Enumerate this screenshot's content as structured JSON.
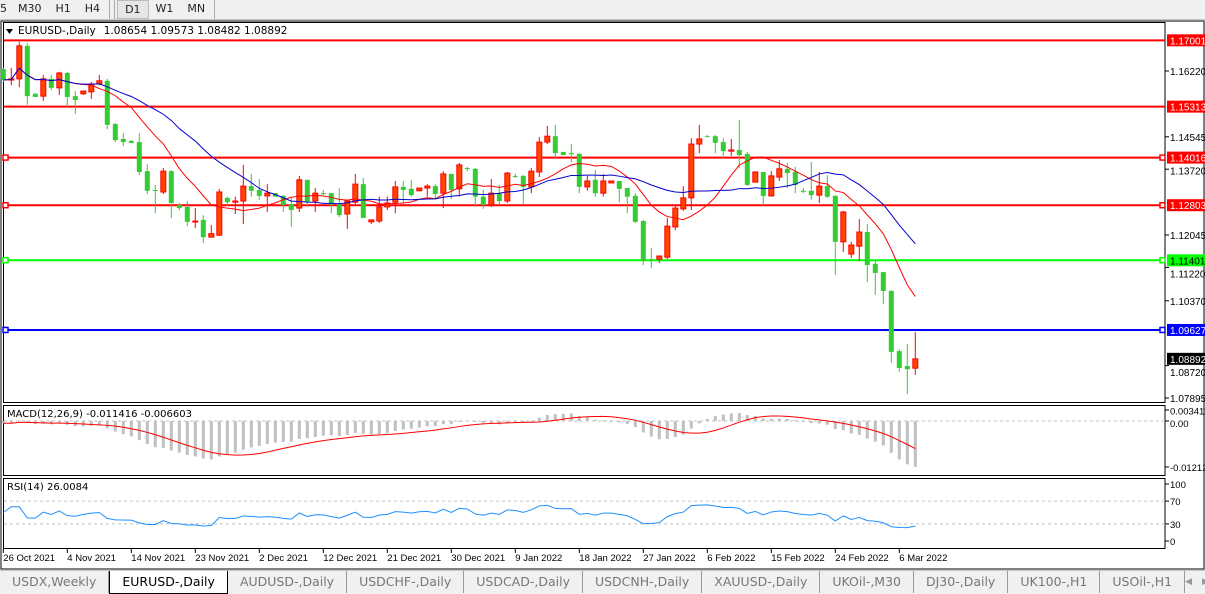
{
  "toolbar": {
    "timeframes": [
      {
        "label": "5"
      },
      {
        "label": "M30"
      },
      {
        "label": "H1"
      },
      {
        "label": "H4"
      },
      {
        "label": "D1",
        "active": true
      },
      {
        "label": "W1"
      },
      {
        "label": "MN"
      }
    ]
  },
  "header": {
    "symbol": "EURUSD-,Daily",
    "ohlc_text": "1.08654 1.09573 1.08482 1.08892"
  },
  "macd": {
    "label": "MACD(12,26,9) -0.011416 -0.006603",
    "axis": [
      "0.003411",
      "0.00",
      "-0.01212"
    ],
    "hist_color": "#c0c0c0",
    "signal_color": "#ff0000"
  },
  "rsi": {
    "label": "RSI(14) 26.0084",
    "axis": [
      "100",
      "70",
      "30",
      "0"
    ],
    "line_color": "#1e90ff",
    "levels": [
      70,
      30
    ]
  },
  "tabs": [
    {
      "label": "USDX,Weekly"
    },
    {
      "label": "EURUSD-,Daily",
      "active": true
    },
    {
      "label": "AUDUSD-,Daily"
    },
    {
      "label": "USDCHF-,Daily"
    },
    {
      "label": "USDCAD-,Daily"
    },
    {
      "label": "USDCNH-,Daily"
    },
    {
      "label": "XAUUSD-,Daily"
    },
    {
      "label": "UKOil-,M30"
    },
    {
      "label": "DJ30-,Daily"
    },
    {
      "label": "UK100-,H1"
    },
    {
      "label": "USOil-,H1"
    }
  ],
  "chart_data": {
    "type": "candlestick",
    "symbol": "EURUSD-",
    "timeframe": "Daily",
    "colors": {
      "up": "#ff4500",
      "down": "#32cd32",
      "ma_fast": "#ff0000",
      "ma_slow": "#0000cd"
    },
    "price_axis_ticks": [
      "1.16220",
      "1.14545",
      "1.13720",
      "1.12045",
      "1.11220",
      "1.10370",
      "1.08720",
      "1.07895"
    ],
    "ylim": [
      1.0768,
      1.1727
    ],
    "current_price": "1.08892",
    "hlines": [
      {
        "price": "1.17001",
        "color": "#ff0000"
      },
      {
        "price": "1.15313",
        "color": "#ff0000"
      },
      {
        "price": "1.14016",
        "color": "#ff0000",
        "marker": true
      },
      {
        "price": "1.12803",
        "color": "#ff0000",
        "marker": true
      },
      {
        "price": "1.11401",
        "color": "#00ff00",
        "marker": true
      },
      {
        "price": "1.09627",
        "color": "#0000ff",
        "marker": true
      }
    ],
    "date_labels": [
      "26 Oct 2021",
      "4 Nov 2021",
      "14 Nov 2021",
      "23 Nov 2021",
      "2 Dec 2021",
      "12 Dec 2021",
      "21 Dec 2021",
      "30 Dec 2021",
      "9 Jan 2022",
      "18 Jan 2022",
      "27 Jan 2022",
      "6 Feb 2022",
      "15 Feb 2022",
      "24 Feb 2022",
      "6 Mar 2022"
    ],
    "ohlc": [
      [
        1.1627,
        1.163,
        1.1594,
        1.1599
      ],
      [
        1.1599,
        1.163,
        1.1586,
        1.1602
      ],
      [
        1.1602,
        1.1696,
        1.1581,
        1.1686
      ],
      [
        1.1686,
        1.1693,
        1.1536,
        1.1558
      ],
      [
        1.1564,
        1.1566,
        1.1556,
        1.1556
      ],
      [
        1.1558,
        1.1612,
        1.1546,
        1.1602
      ],
      [
        1.1602,
        1.1612,
        1.1574,
        1.1579
      ],
      [
        1.1579,
        1.162,
        1.1561,
        1.1617
      ],
      [
        1.1617,
        1.162,
        1.1528,
        1.1556
      ],
      [
        1.1558,
        1.1571,
        1.1513,
        1.1548
      ],
      [
        1.1564,
        1.1571,
        1.1561,
        1.1571
      ],
      [
        1.1569,
        1.1594,
        1.1551,
        1.1589
      ],
      [
        1.1589,
        1.1612,
        1.1586,
        1.1597
      ],
      [
        1.1597,
        1.1602,
        1.1474,
        1.1485
      ],
      [
        1.1487,
        1.149,
        1.1441,
        1.1446
      ],
      [
        1.1449,
        1.1464,
        1.1431,
        1.1441
      ],
      [
        1.1444,
        1.1446,
        1.1439,
        1.1439
      ],
      [
        1.1441,
        1.1464,
        1.1357,
        1.1365
      ],
      [
        1.1367,
        1.1385,
        1.1309,
        1.1317
      ],
      [
        1.1319,
        1.1332,
        1.126,
        1.1317
      ],
      [
        1.1314,
        1.1375,
        1.1309,
        1.1367
      ],
      [
        1.1367,
        1.137,
        1.1248,
        1.1286
      ],
      [
        1.1281,
        1.1286,
        1.1268,
        1.1273
      ],
      [
        1.1276,
        1.1291,
        1.1227,
        1.1238
      ],
      [
        1.1238,
        1.1273,
        1.1222,
        1.124
      ],
      [
        1.1243,
        1.1255,
        1.1184,
        1.1199
      ],
      [
        1.1199,
        1.123,
        1.1199,
        1.1208
      ],
      [
        1.1204,
        1.1322,
        1.1202,
        1.1314
      ],
      [
        1.1299,
        1.1302,
        1.1279,
        1.1288
      ],
      [
        1.1288,
        1.1302,
        1.1258,
        1.1291
      ],
      [
        1.1291,
        1.1383,
        1.1232,
        1.1329
      ],
      [
        1.1329,
        1.136,
        1.1302,
        1.1317
      ],
      [
        1.1319,
        1.1347,
        1.1294,
        1.1304
      ],
      [
        1.1304,
        1.1334,
        1.1263,
        1.1311
      ],
      [
        1.1311,
        1.1311,
        1.1302,
        1.1302
      ],
      [
        1.1304,
        1.1306,
        1.1263,
        1.1281
      ],
      [
        1.1283,
        1.1299,
        1.1225,
        1.1268
      ],
      [
        1.1273,
        1.1355,
        1.1263,
        1.1345
      ],
      [
        1.1345,
        1.1345,
        1.1276,
        1.1288
      ],
      [
        1.1291,
        1.1324,
        1.1263,
        1.1311
      ],
      [
        1.1311,
        1.1319,
        1.1306,
        1.131
      ],
      [
        1.1311,
        1.1311,
        1.126,
        1.1281
      ],
      [
        1.1283,
        1.1324,
        1.125,
        1.1255
      ],
      [
        1.1258,
        1.1294,
        1.122,
        1.1291
      ],
      [
        1.1288,
        1.136,
        1.1283,
        1.1334
      ],
      [
        1.1334,
        1.135,
        1.1248,
        1.1248
      ],
      [
        1.1238,
        1.1243,
        1.1232,
        1.1243
      ],
      [
        1.124,
        1.1302,
        1.1235,
        1.1276
      ],
      [
        1.1276,
        1.1302,
        1.1268,
        1.1286
      ],
      [
        1.1288,
        1.1342,
        1.126,
        1.1327
      ],
      [
        1.1327,
        1.1342,
        1.1286,
        1.1319
      ],
      [
        1.1322,
        1.1345,
        1.1302,
        1.1306
      ],
      [
        1.1317,
        1.1324,
        1.1317,
        1.1324
      ],
      [
        1.1324,
        1.1334,
        1.1302,
        1.1329
      ],
      [
        1.1329,
        1.1334,
        1.1296,
        1.1309
      ],
      [
        1.1311,
        1.1367,
        1.1273,
        1.136
      ],
      [
        1.136,
        1.136,
        1.1296,
        1.1319
      ],
      [
        1.1322,
        1.1388,
        1.1302,
        1.1383
      ],
      [
        1.1375,
        1.1378,
        1.1367,
        1.1374
      ],
      [
        1.1373,
        1.1375,
        1.1276,
        1.1302
      ],
      [
        1.1302,
        1.1319,
        1.1271,
        1.1281
      ],
      [
        1.1281,
        1.1347,
        1.1276,
        1.1311
      ],
      [
        1.1311,
        1.1332,
        1.1281,
        1.1291
      ],
      [
        1.1291,
        1.1365,
        1.1286,
        1.1362
      ],
      [
        1.1355,
        1.136,
        1.135,
        1.1354
      ],
      [
        1.1355,
        1.1357,
        1.1281,
        1.1327
      ],
      [
        1.1327,
        1.1375,
        1.1311,
        1.1367
      ],
      [
        1.1365,
        1.1454,
        1.1352,
        1.1441
      ],
      [
        1.1441,
        1.1482,
        1.1436,
        1.1456
      ],
      [
        1.1456,
        1.1485,
        1.1398,
        1.1413
      ],
      [
        1.1416,
        1.1416,
        1.1408,
        1.1408
      ],
      [
        1.1413,
        1.1436,
        1.139,
        1.1411
      ],
      [
        1.1411,
        1.1413,
        1.1311,
        1.1327
      ],
      [
        1.1327,
        1.1355,
        1.1317,
        1.1342
      ],
      [
        1.1345,
        1.137,
        1.1302,
        1.1311
      ],
      [
        1.1311,
        1.136,
        1.1302,
        1.1342
      ],
      [
        1.1337,
        1.1342,
        1.1337,
        1.1342
      ],
      [
        1.1342,
        1.1342,
        1.1288,
        1.1322
      ],
      [
        1.1324,
        1.1324,
        1.126,
        1.1302
      ],
      [
        1.1304,
        1.1311,
        1.1235,
        1.1238
      ],
      [
        1.124,
        1.1243,
        1.1128,
        1.1138
      ],
      [
        1.1143,
        1.1171,
        1.112,
        1.1141
      ],
      [
        1.1143,
        1.1151,
        1.1133,
        1.1151
      ],
      [
        1.1148,
        1.1248,
        1.1143,
        1.1227
      ],
      [
        1.1225,
        1.1281,
        1.1217,
        1.1273
      ],
      [
        1.1271,
        1.1329,
        1.1266,
        1.1299
      ],
      [
        1.1299,
        1.1451,
        1.1268,
        1.1436
      ],
      [
        1.1436,
        1.1485,
        1.1413,
        1.1449
      ],
      [
        1.1456,
        1.1459,
        1.1454,
        1.1455
      ],
      [
        1.1456,
        1.1459,
        1.1413,
        1.1439
      ],
      [
        1.1441,
        1.1451,
        1.1398,
        1.1418
      ],
      [
        1.1418,
        1.1449,
        1.1406,
        1.1421
      ],
      [
        1.1421,
        1.1497,
        1.1375,
        1.1408
      ],
      [
        1.1411,
        1.1416,
        1.1329,
        1.1332
      ],
      [
        1.1339,
        1.1365,
        1.1339,
        1.1365
      ],
      [
        1.1365,
        1.1365,
        1.1279,
        1.1304
      ],
      [
        1.1304,
        1.1367,
        1.1302,
        1.1355
      ],
      [
        1.1352,
        1.1395,
        1.1342,
        1.1373
      ],
      [
        1.1373,
        1.1388,
        1.1324,
        1.1362
      ],
      [
        1.1365,
        1.1378,
        1.1311,
        1.1332
      ],
      [
        1.1317,
        1.1324,
        1.1311,
        1.1316
      ],
      [
        1.1317,
        1.139,
        1.1294,
        1.1306
      ],
      [
        1.1306,
        1.1365,
        1.1286,
        1.1329
      ],
      [
        1.1329,
        1.1357,
        1.1299,
        1.1302
      ],
      [
        1.1304,
        1.1306,
        1.1103,
        1.1187
      ],
      [
        1.1187,
        1.1266,
        1.1161,
        1.1263
      ],
      [
        1.1156,
        1.1187,
        1.1146,
        1.1179
      ],
      [
        1.1176,
        1.1245,
        1.1138,
        1.1212
      ],
      [
        1.1212,
        1.1232,
        1.1085,
        1.1128
      ],
      [
        1.1131,
        1.1141,
        1.1052,
        1.1108
      ],
      [
        1.111,
        1.111,
        1.1029,
        1.1062
      ],
      [
        1.1062,
        1.1064,
        1.0879,
        1.0907
      ],
      [
        1.0909,
        1.0914,
        1.0856,
        1.0866
      ],
      [
        1.0871,
        1.0927,
        1.08,
        1.0863
      ],
      [
        1.08654,
        1.09573,
        1.08482,
        1.08892
      ]
    ]
  }
}
